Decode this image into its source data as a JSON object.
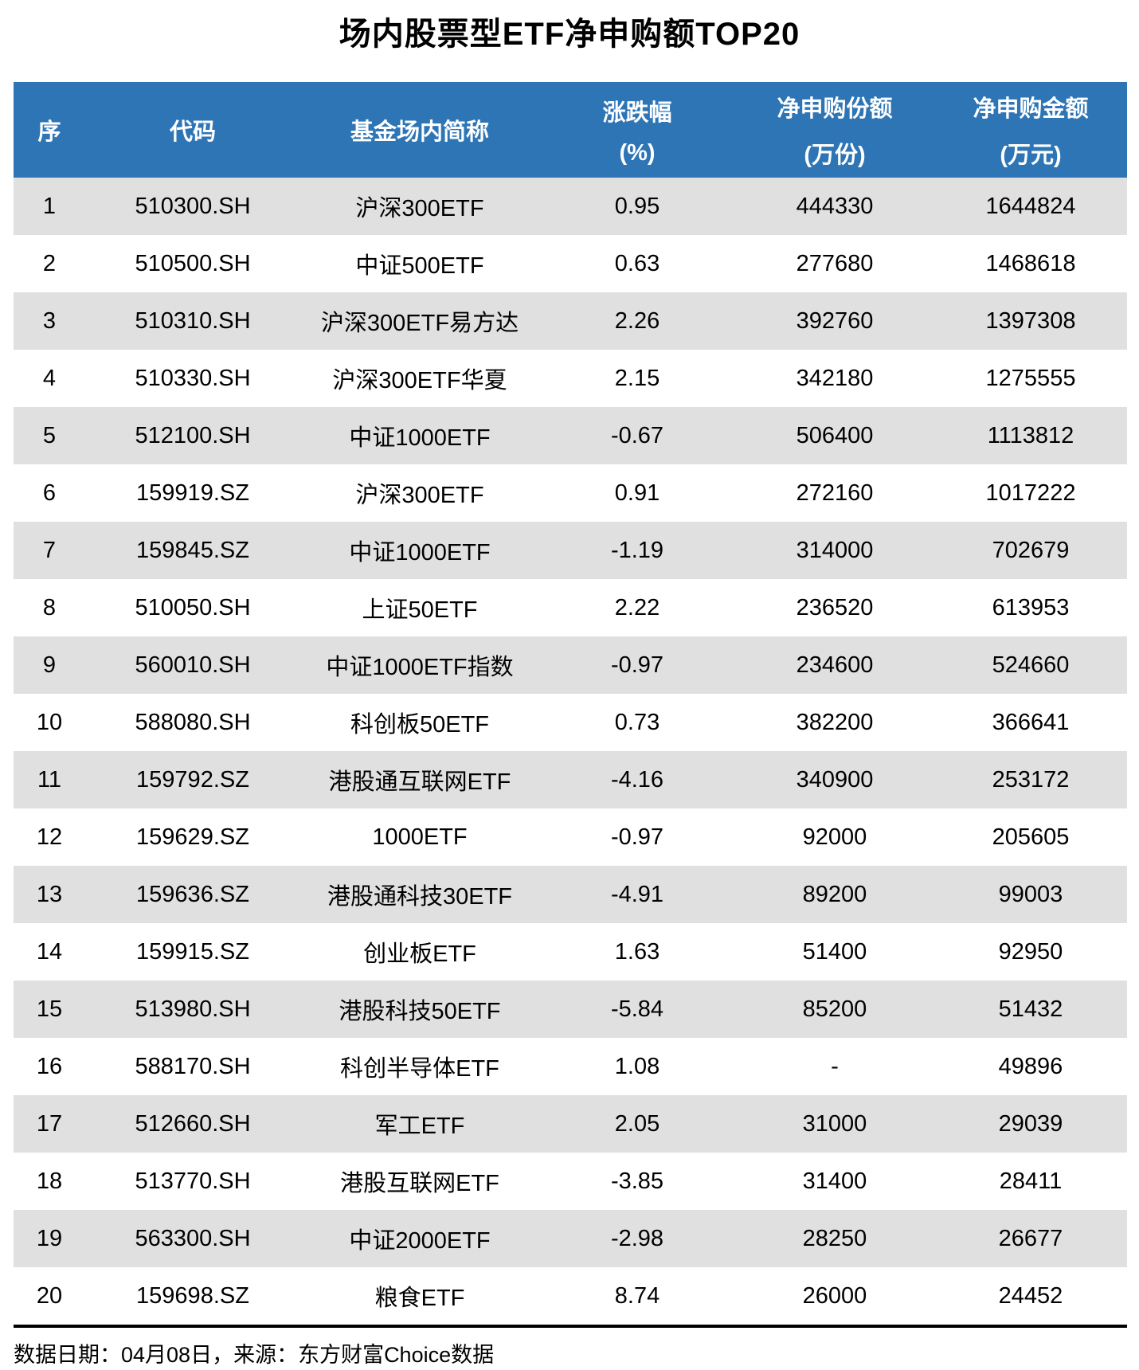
{
  "title": "场内股票型ETF净申购额TOP20",
  "colors": {
    "header_bg": "#2E75B6",
    "row_alt_bg": "#E0E0E0",
    "row_bg": "#FFFFFF",
    "header_text": "#FFFFFF",
    "body_text": "#000000"
  },
  "chart_data": {
    "type": "table",
    "title": "场内股票型ETF净申购额TOP20",
    "columns": [
      {
        "label": "序",
        "sub": ""
      },
      {
        "label": "代码",
        "sub": ""
      },
      {
        "label": "基金场内简称",
        "sub": ""
      },
      {
        "label": "涨跌幅",
        "sub": "(%)"
      },
      {
        "label": "净申购份额",
        "sub": "(万份)"
      },
      {
        "label": "净申购金额",
        "sub": "(万元)"
      }
    ],
    "rows": [
      [
        "1",
        "510300.SH",
        "沪深300ETF",
        "0.95",
        "444330",
        "1644824"
      ],
      [
        "2",
        "510500.SH",
        "中证500ETF",
        "0.63",
        "277680",
        "1468618"
      ],
      [
        "3",
        "510310.SH",
        "沪深300ETF易方达",
        "2.26",
        "392760",
        "1397308"
      ],
      [
        "4",
        "510330.SH",
        "沪深300ETF华夏",
        "2.15",
        "342180",
        "1275555"
      ],
      [
        "5",
        "512100.SH",
        "中证1000ETF",
        "-0.67",
        "506400",
        "1113812"
      ],
      [
        "6",
        "159919.SZ",
        "沪深300ETF",
        "0.91",
        "272160",
        "1017222"
      ],
      [
        "7",
        "159845.SZ",
        "中证1000ETF",
        "-1.19",
        "314000",
        "702679"
      ],
      [
        "8",
        "510050.SH",
        "上证50ETF",
        "2.22",
        "236520",
        "613953"
      ],
      [
        "9",
        "560010.SH",
        "中证1000ETF指数",
        "-0.97",
        "234600",
        "524660"
      ],
      [
        "10",
        "588080.SH",
        "科创板50ETF",
        "0.73",
        "382200",
        "366641"
      ],
      [
        "11",
        "159792.SZ",
        "港股通互联网ETF",
        "-4.16",
        "340900",
        "253172"
      ],
      [
        "12",
        "159629.SZ",
        "1000ETF",
        "-0.97",
        "92000",
        "205605"
      ],
      [
        "13",
        "159636.SZ",
        "港股通科技30ETF",
        "-4.91",
        "89200",
        "99003"
      ],
      [
        "14",
        "159915.SZ",
        "创业板ETF",
        "1.63",
        "51400",
        "92950"
      ],
      [
        "15",
        "513980.SH",
        "港股科技50ETF",
        "-5.84",
        "85200",
        "51432"
      ],
      [
        "16",
        "588170.SH",
        "科创半导体ETF",
        "1.08",
        "-",
        "49896"
      ],
      [
        "17",
        "512660.SH",
        "军工ETF",
        "2.05",
        "31000",
        "29039"
      ],
      [
        "18",
        "513770.SH",
        "港股互联网ETF",
        "-3.85",
        "31400",
        "28411"
      ],
      [
        "19",
        "563300.SH",
        "中证2000ETF",
        "-2.98",
        "28250",
        "26677"
      ],
      [
        "20",
        "159698.SZ",
        "粮食ETF",
        "8.74",
        "26000",
        "24452"
      ]
    ]
  },
  "footer": {
    "text": "数据日期：04月08日，来源：东方财富Choice数据"
  }
}
